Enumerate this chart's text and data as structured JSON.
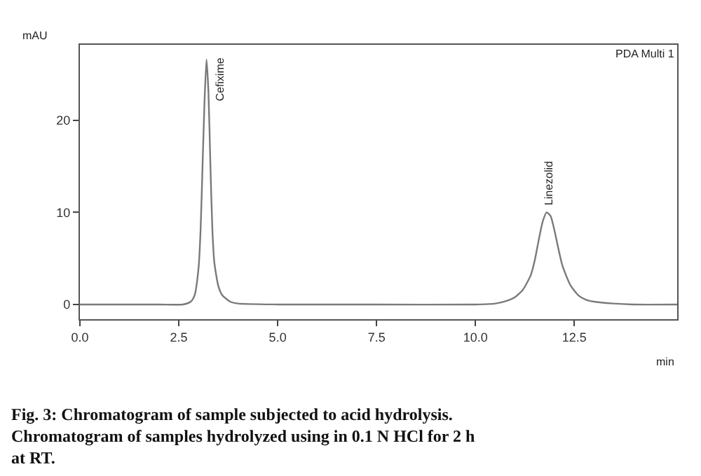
{
  "chart_data": {
    "type": "line",
    "xlabel": "min",
    "ylabel": "mAU",
    "color": "#7a7a7a",
    "x": [
      0,
      1,
      2,
      2.6,
      2.8,
      2.9,
      3.0,
      3.05,
      3.1,
      3.15,
      3.2,
      3.25,
      3.3,
      3.35,
      3.4,
      3.5,
      3.6,
      3.8,
      4.0,
      5,
      7.5,
      10,
      10.5,
      10.8,
      11,
      11.2,
      11.4,
      11.5,
      11.6,
      11.7,
      11.8,
      11.9,
      12.0,
      12.1,
      12.2,
      12.4,
      12.6,
      12.8,
      13,
      13.5,
      14,
      15.1
    ],
    "values": [
      0,
      0,
      0,
      0,
      0.3,
      1,
      4,
      8,
      15,
      22,
      26.6,
      23,
      15,
      8,
      4.5,
      2,
      1,
      0.3,
      0.1,
      0,
      0,
      0,
      0.1,
      0.4,
      0.8,
      1.6,
      3.2,
      4.8,
      7,
      9,
      10,
      9.6,
      8,
      6,
      4.2,
      2.1,
      1,
      0.5,
      0.3,
      0.1,
      0,
      0
    ],
    "xlim": [
      0,
      15.1
    ],
    "ylim": [
      -1.6,
      28.2
    ],
    "xticks": [
      {
        "value": 0,
        "label": "0.0"
      },
      {
        "value": 2.5,
        "label": "2.5"
      },
      {
        "value": 5,
        "label": "5.0"
      },
      {
        "value": 7.5,
        "label": "7.5"
      },
      {
        "value": 10,
        "label": "10.0"
      },
      {
        "value": 12.5,
        "label": "12.5"
      }
    ],
    "yticks": [
      0,
      10,
      20
    ],
    "annotations": [
      {
        "text": "Cefixime",
        "x": 3.2,
        "y": 26.6
      },
      {
        "text": "Linezolid",
        "x": 11.8,
        "y": 10
      },
      "PDA Multi 1",
      "Fig. 3: Chromatogram of sample subjected to acid hydrolysis.",
      "Chromatogram of samples hydrolyzed using in 0.1 N HCl for 2 h at RT."
    ]
  }
}
